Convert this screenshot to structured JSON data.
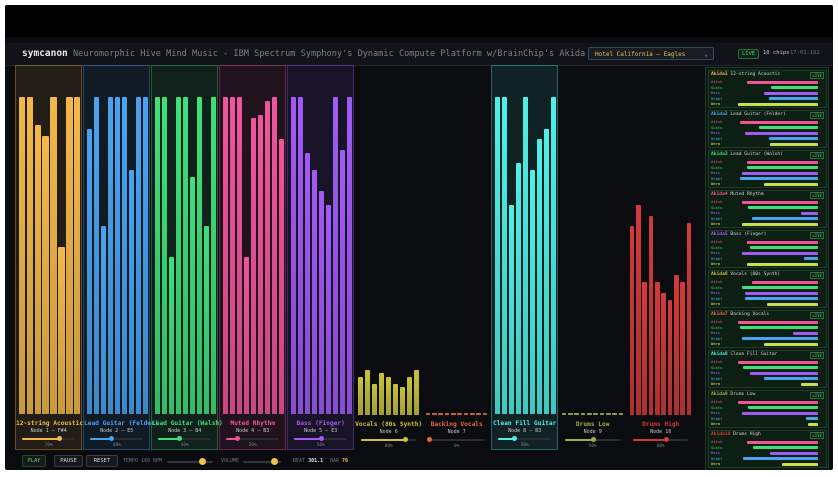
{
  "header": {
    "brand": "symcanon",
    "subtitle": "Neuromorphic Hive Mind Music - IBM Spectrum Symphony's Dynamic Compute Platform w/BrainChip's Akida",
    "song_select": {
      "selected": "Hotel California — Eagles"
    },
    "live_badge": "LIVE",
    "chips": "10 chips",
    "clock": "17:01:102"
  },
  "colors": {
    "accent_live": "#46d46a",
    "channels": [
      "#f2b84b",
      "#4aa3f0",
      "#3fe07a",
      "#f0559a",
      "#a05bf5",
      "#c8c33a",
      "#e06a3a",
      "#4ff0e6",
      "#9fb045",
      "#d23a3a"
    ]
  },
  "channels": [
    {
      "name": "12-string Acoustic",
      "node": "Node 1 — F#4",
      "color": "#f2b84b",
      "pct": "70%",
      "value": 0.7,
      "highlight": true,
      "bars": [
        0.91,
        0.91,
        0.83,
        0.8,
        0.91,
        0.48,
        0.91,
        0.91
      ]
    },
    {
      "name": "Lead Guitar (Felder)",
      "node": "Node 2 — E5",
      "color": "#4aa3f0",
      "pct": "40%",
      "value": 0.4,
      "highlight": true,
      "bars": [
        0.82,
        0.91,
        0.54,
        0.91,
        0.91,
        0.91,
        0.7,
        0.91,
        0.91
      ]
    },
    {
      "name": "Lead Guitar (Walsh)",
      "node": "Node 3 — B4",
      "color": "#3fe07a",
      "pct": "40%",
      "value": 0.4,
      "highlight": true,
      "bars": [
        0.91,
        0.91,
        0.45,
        0.91,
        0.91,
        0.68,
        0.91,
        0.54,
        0.91
      ]
    },
    {
      "name": "Muted Rhythm",
      "node": "Node 4 — B3",
      "color": "#f0559a",
      "pct": "20%",
      "value": 0.2,
      "highlight": true,
      "bars": [
        0.91,
        0.91,
        0.91,
        0.45,
        0.85,
        0.86,
        0.9,
        0.91,
        0.79
      ]
    },
    {
      "name": "Bass (Finger)",
      "node": "Node 5 — E3",
      "color": "#a05bf5",
      "pct": "50%",
      "value": 0.5,
      "highlight": true,
      "bars": [
        0.91,
        0.91,
        0.75,
        0.7,
        0.64,
        0.6,
        0.91,
        0.76,
        0.91
      ]
    },
    {
      "name": "Vocals (80s Synth)",
      "node": "Node 6",
      "color": "#c8c33a",
      "pct": "80%",
      "value": 0.8,
      "highlight": false,
      "bars": [
        0.11,
        0.13,
        0.09,
        0.12,
        0.11,
        0.09,
        0.08,
        0.11,
        0.13
      ]
    },
    {
      "name": "Backing Vocals",
      "node": "Node 7",
      "color": "#e06a3a",
      "pct": "0%",
      "value": 0.0,
      "highlight": false,
      "bars": [
        0.005,
        0.005,
        0.005,
        0.005,
        0.005,
        0.005,
        0.005,
        0.005,
        0.005,
        0.005
      ]
    },
    {
      "name": "Clean Fill Guitar",
      "node": "Node 8 — B3",
      "color": "#4ff0e6",
      "pct": "30%",
      "value": 0.3,
      "highlight": true,
      "bars": [
        0.91,
        0.91,
        0.6,
        0.72,
        0.91,
        0.7,
        0.79,
        0.82,
        0.91
      ]
    },
    {
      "name": "Drums Low",
      "node": "Node 9",
      "color": "#9fb045",
      "pct": "50%",
      "value": 0.5,
      "highlight": false,
      "bars": [
        0.005,
        0.005,
        0.005,
        0.005,
        0.005,
        0.005,
        0.005,
        0.005,
        0.005,
        0.005
      ]
    },
    {
      "name": "Drums High",
      "node": "Node 10",
      "color": "#d23a3a",
      "pct": "60%",
      "value": 0.6,
      "highlight": false,
      "bars": [
        0.54,
        0.6,
        0.38,
        0.57,
        0.38,
        0.35,
        0.33,
        0.4,
        0.38,
        0.55
      ]
    }
  ],
  "controls": {
    "play": "PLAY",
    "pause": "PAUSE",
    "reset": "RESET",
    "tempo_label": "TEMPO 160 BPM",
    "tempo_value": 0.75,
    "volume_label": "VOLUME",
    "volume_value": 0.82,
    "beat_label": "BEAT",
    "beat_value": "301.1",
    "bar_label": "BAR",
    "bar_value": "76"
  },
  "sidebar": {
    "row_labels": [
      "Attck",
      "Sustn",
      "Bass",
      "Brght",
      "Warm"
    ],
    "row_colors": [
      "#f0559a",
      "#3fe07a",
      "#a05bf5",
      "#4aa3f0",
      "#c8e04a"
    ],
    "live": "LIVE",
    "nodes": [
      {
        "id": "Akida1",
        "label": "12-string Acoustic",
        "vals": [
          0.84,
          0.55,
          0.64,
          0.58,
          0.94
        ]
      },
      {
        "id": "Akida2",
        "label": "Lead Guitar (Felder)",
        "vals": [
          0.92,
          0.7,
          0.86,
          0.58,
          0.56
        ]
      },
      {
        "id": "Akida3",
        "label": "Lead Guitar (Walsh)",
        "vals": [
          0.84,
          0.84,
          0.9,
          0.92,
          0.64
        ]
      },
      {
        "id": "Akida4",
        "label": "Muted Rhythm",
        "vals": [
          0.9,
          0.82,
          0.2,
          0.78,
          0.89
        ]
      },
      {
        "id": "Akida5",
        "label": "Bass (Finger)",
        "vals": [
          0.84,
          0.8,
          0.9,
          0.16,
          0.84
        ]
      },
      {
        "id": "Akida6",
        "label": "Vocals (80s Synth)",
        "vals": [
          0.78,
          0.9,
          0.86,
          0.86,
          0.6
        ]
      },
      {
        "id": "Akida7",
        "label": "Backing Vocals",
        "vals": [
          0.94,
          0.92,
          0.3,
          0.9,
          0.64
        ]
      },
      {
        "id": "Akida8",
        "label": "Clean Fill Guitar",
        "vals": [
          0.94,
          0.88,
          0.8,
          0.64,
          0.2
        ]
      },
      {
        "id": "Akida9",
        "label": "Drums Low",
        "vals": [
          0.94,
          0.82,
          0.9,
          0.14,
          0.12
        ]
      },
      {
        "id": "Akida10",
        "label": "Drums High",
        "vals": [
          0.84,
          0.76,
          0.56,
          0.88,
          0.42
        ]
      }
    ]
  }
}
